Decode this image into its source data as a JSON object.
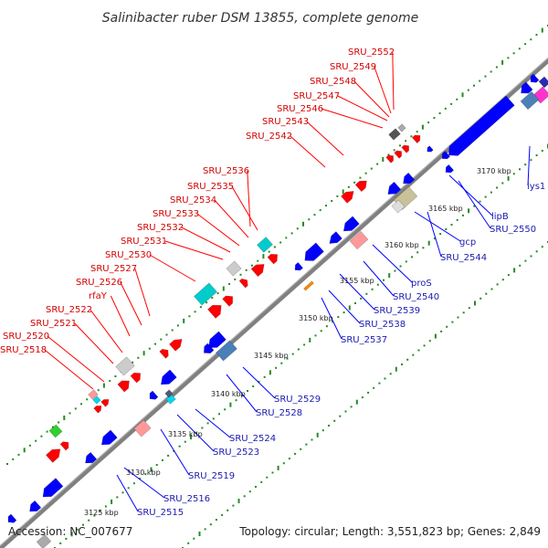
{
  "title": "Salinibacter ruber DSM 13855, complete genome",
  "accession_text": "Accession: NC_007677",
  "topology_text": "Topology: circular; Length: 3,551,823 bp; Genes: 2,849",
  "colors": {
    "forward": "#ff0000",
    "reverse": "#0000ff",
    "label_forward": "#d40000",
    "label_reverse": "#1a1ab0",
    "backbone": "#808080",
    "dots": "#228b22"
  },
  "ticks": [
    "3125 kbp",
    "3130 kbp",
    "3135 kbp",
    "3140 kbp",
    "3145 kbp",
    "3150 kbp",
    "3155 kbp",
    "3160 kbp",
    "3165 kbp",
    "3170 kbp"
  ],
  "forward_genes": [
    "SRU_2518",
    "SRU_2520",
    "SRU_2521",
    "SRU_2522",
    "rfaY",
    "SRU_2526",
    "SRU_2527",
    "SRU_2530",
    "SRU_2531",
    "SRU_2532",
    "SRU_2533",
    "SRU_2534",
    "SRU_2535",
    "SRU_2536",
    "SRU_2542",
    "SRU_2543",
    "SRU_2546",
    "SRU_2547",
    "SRU_2548",
    "SRU_2549",
    "SRU_2552"
  ],
  "reverse_genes": [
    "SRU_2515",
    "SRU_2516",
    "SRU_2519",
    "SRU_2523",
    "SRU_2524",
    "SRU_2528",
    "SRU_2529",
    "SRU_2537",
    "SRU_2538",
    "SRU_2539",
    "SRU_2540",
    "proS",
    "SRU_2544",
    "gcp",
    "SRU_2550",
    "lipB",
    "lys1"
  ]
}
